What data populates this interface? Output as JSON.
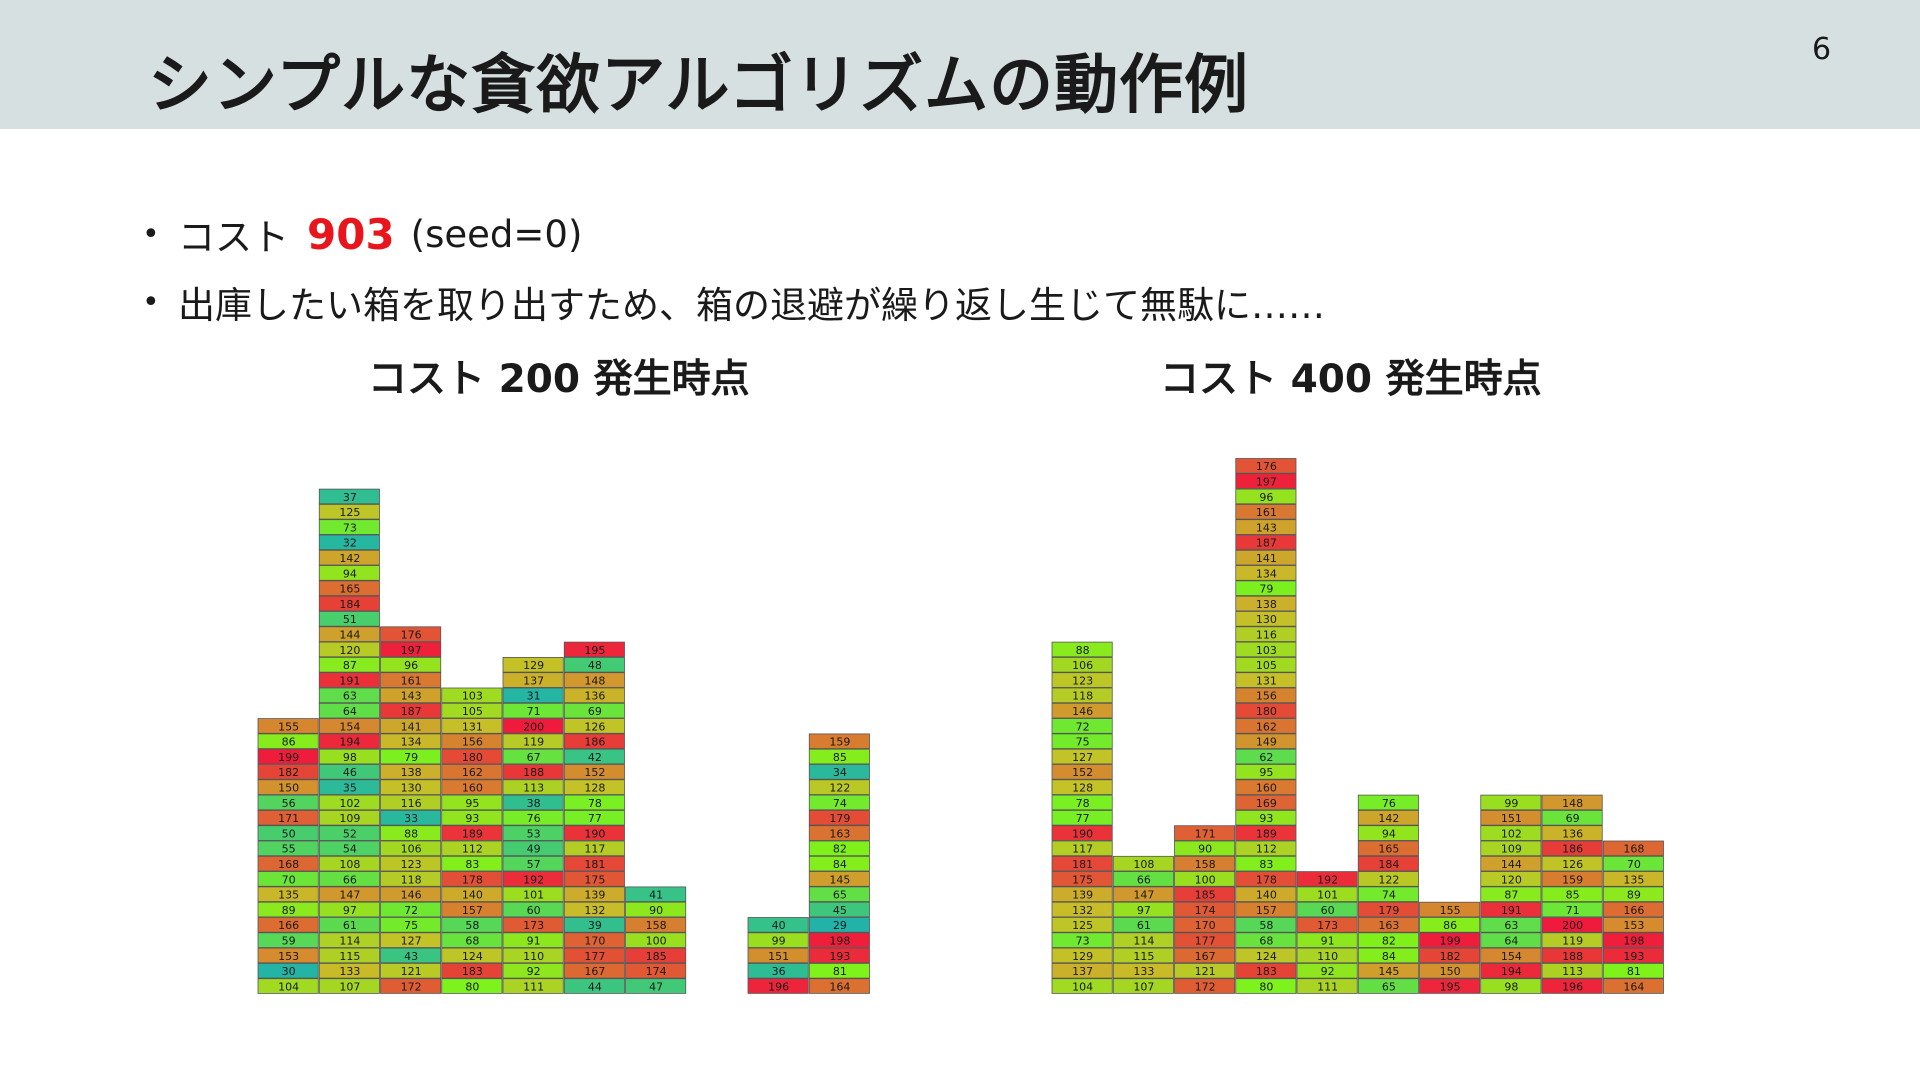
{
  "slide": {
    "title": "シンプルな貪欲アルゴリズムの動作例",
    "page_number": "6"
  },
  "bullets": {
    "cost_prefix": "コスト",
    "cost_value": "903",
    "cost_suffix": "(seed=0)",
    "line2": "出庫したい箱を取り出すため、箱の退避が繰り返し生じて無駄に……"
  },
  "panels": [
    {
      "title": "コスト 200 発生時点",
      "stacks": [
        [
          104,
          30,
          153,
          59,
          166,
          89,
          135,
          70,
          168,
          55,
          50,
          171,
          56,
          150,
          182,
          199,
          86,
          155
        ],
        [
          107,
          133,
          115,
          114,
          61,
          97,
          147,
          66,
          108,
          54,
          52,
          109,
          102,
          35,
          46,
          98,
          194,
          154,
          64,
          63,
          191,
          87,
          120,
          144,
          51,
          184,
          165,
          94,
          142,
          32,
          73,
          125,
          37
        ],
        [
          172,
          121,
          43,
          127,
          75,
          72,
          146,
          118,
          123,
          106,
          88,
          33,
          116,
          130,
          138,
          79,
          134,
          141,
          187,
          143,
          161,
          96,
          197,
          176
        ],
        [
          80,
          183,
          124,
          68,
          58,
          157,
          140,
          178,
          83,
          112,
          189,
          93,
          95,
          160,
          162,
          180,
          156,
          131,
          105,
          103
        ],
        [
          111,
          92,
          110,
          91,
          173,
          60,
          101,
          192,
          57,
          49,
          53,
          76,
          38,
          113,
          188,
          67,
          119,
          200,
          71,
          31,
          137,
          129
        ],
        [
          44,
          167,
          177,
          170,
          39,
          132,
          139,
          175,
          181,
          117,
          190,
          77,
          78,
          128,
          152,
          42,
          186,
          126,
          69,
          136,
          148,
          48,
          195
        ],
        [
          47,
          174,
          185,
          100,
          158,
          90,
          41
        ],
        [],
        [
          196,
          36,
          151,
          99,
          40
        ],
        [
          164,
          81,
          193,
          198,
          29,
          45,
          65,
          145,
          84,
          82,
          163,
          179,
          74,
          122,
          34,
          85,
          159
        ]
      ]
    },
    {
      "title": "コスト 400 発生時点",
      "stacks": [
        [
          104,
          137,
          129,
          73,
          125,
          132,
          139,
          175,
          181,
          117,
          190,
          77,
          78,
          128,
          152,
          127,
          75,
          72,
          146,
          118,
          123,
          106,
          88
        ],
        [
          107,
          133,
          115,
          114,
          61,
          97,
          147,
          66,
          108
        ],
        [
          172,
          121,
          167,
          177,
          170,
          174,
          185,
          100,
          158,
          90,
          171
        ],
        [
          80,
          183,
          124,
          68,
          58,
          157,
          140,
          178,
          83,
          112,
          189,
          93,
          169,
          160,
          95,
          62,
          149,
          162,
          180,
          156,
          131,
          105,
          103,
          116,
          130,
          138,
          79,
          134,
          141,
          187,
          143,
          161,
          96,
          197,
          176
        ],
        [
          111,
          92,
          110,
          91,
          173,
          60,
          101,
          192
        ],
        [
          65,
          145,
          84,
          82,
          163,
          179,
          74,
          122,
          184,
          165,
          94,
          142,
          76
        ],
        [
          195,
          150,
          182,
          199,
          86,
          155
        ],
        [
          98,
          194,
          154,
          64,
          63,
          191,
          87,
          120,
          144,
          109,
          102,
          151,
          99
        ],
        [
          196,
          113,
          188,
          119,
          200,
          71,
          85,
          159,
          126,
          186,
          136,
          69,
          148
        ],
        [
          164,
          81,
          193,
          198,
          153,
          166,
          89,
          135,
          70,
          168
        ]
      ]
    }
  ],
  "palette": {
    "low": "#21b3a8",
    "mid": "#7ef21b",
    "high": "#f01a3c"
  }
}
